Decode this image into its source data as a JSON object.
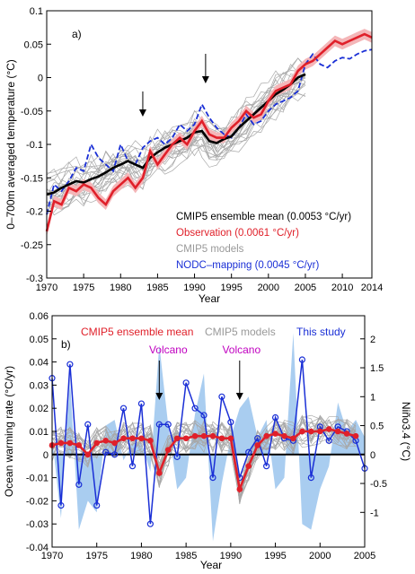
{
  "chart_data": [
    {
      "type": "line",
      "panel_label": "a)",
      "xlabel": "Year",
      "ylabel": "0–700m averaged temperature (°C)",
      "xlim": [
        1970,
        2014
      ],
      "ylim": [
        -0.3,
        0.1
      ],
      "xticks": [
        "1970",
        "1975",
        "1980",
        "1985",
        "1990",
        "1995",
        "2000",
        "2005",
        "2010",
        "2014"
      ],
      "yticks": [
        "-0.3",
        "-0.25",
        "-0.2",
        "-0.15",
        "-0.1",
        "-0.05",
        "0",
        "0.05",
        "0.1"
      ],
      "arrows_at_year": [
        1983,
        1991.5
      ],
      "series": [
        {
          "name": "CMIP5 ensemble mean",
          "label": "CMIP5 ensemble mean  (0.0053 °C/yr)",
          "color": "#000000",
          "x": [
            1970,
            1971,
            1972,
            1973,
            1974,
            1975,
            1976,
            1977,
            1978,
            1979,
            1980,
            1981,
            1982,
            1983,
            1984,
            1985,
            1986,
            1987,
            1988,
            1989,
            1990,
            1991,
            1992,
            1993,
            1994,
            1995,
            1996,
            1997,
            1998,
            1999,
            2000,
            2001,
            2002,
            2003,
            2004,
            2005
          ],
          "y": [
            -0.175,
            -0.172,
            -0.165,
            -0.16,
            -0.155,
            -0.157,
            -0.152,
            -0.148,
            -0.142,
            -0.135,
            -0.13,
            -0.125,
            -0.13,
            -0.135,
            -0.12,
            -0.112,
            -0.105,
            -0.1,
            -0.095,
            -0.09,
            -0.082,
            -0.08,
            -0.095,
            -0.098,
            -0.092,
            -0.088,
            -0.075,
            -0.065,
            -0.055,
            -0.045,
            -0.035,
            -0.025,
            -0.018,
            -0.01,
            0.0,
            0.005
          ]
        },
        {
          "name": "Observation",
          "label": "Observation (0.0061 °C/yr)",
          "color": "#e0202a",
          "x": [
            1970,
            1971,
            1972,
            1973,
            1974,
            1975,
            1976,
            1977,
            1978,
            1979,
            1980,
            1981,
            1982,
            1983,
            1984,
            1985,
            1986,
            1987,
            1988,
            1989,
            1990,
            1991,
            1992,
            1993,
            1994,
            1995,
            1996,
            1997,
            1998,
            1999,
            2000,
            2001,
            2002,
            2003,
            2004,
            2005,
            2006,
            2007,
            2008,
            2009,
            2010,
            2011,
            2012,
            2013,
            2014
          ],
          "y": [
            -0.23,
            -0.185,
            -0.19,
            -0.165,
            -0.17,
            -0.16,
            -0.165,
            -0.18,
            -0.19,
            -0.17,
            -0.16,
            -0.15,
            -0.165,
            -0.15,
            -0.11,
            -0.13,
            -0.115,
            -0.1,
            -0.09,
            -0.1,
            -0.08,
            -0.065,
            -0.085,
            -0.09,
            -0.09,
            -0.075,
            -0.065,
            -0.05,
            -0.06,
            -0.055,
            -0.035,
            -0.02,
            -0.015,
            -0.01,
            0.01,
            0.02,
            0.025,
            0.035,
            0.045,
            0.055,
            0.05,
            0.055,
            0.06,
            0.065,
            0.06
          ]
        },
        {
          "name": "CMIP5 models",
          "label": "CMIP5 models",
          "color": "#999999"
        },
        {
          "name": "NODC-mapping",
          "label": "NODC–mapping (0.0045 °C/yr)",
          "color": "#1a2fd6",
          "x": [
            1970,
            1971,
            1972,
            1973,
            1974,
            1975,
            1976,
            1977,
            1978,
            1979,
            1980,
            1981,
            1982,
            1983,
            1984,
            1985,
            1986,
            1987,
            1988,
            1989,
            1990,
            1991,
            1992,
            1993,
            1994,
            1995,
            1996,
            1997,
            1998,
            1999,
            2000,
            2001,
            2002,
            2003,
            2004,
            2005,
            2006,
            2007,
            2008,
            2009,
            2010,
            2011,
            2012,
            2013,
            2014
          ],
          "y": [
            -0.205,
            -0.16,
            -0.17,
            -0.155,
            -0.135,
            -0.14,
            -0.1,
            -0.12,
            -0.13,
            -0.14,
            -0.1,
            -0.125,
            -0.13,
            -0.105,
            -0.095,
            -0.09,
            -0.1,
            -0.09,
            -0.07,
            -0.08,
            -0.07,
            -0.04,
            -0.06,
            -0.075,
            -0.085,
            -0.09,
            -0.075,
            -0.055,
            -0.07,
            -0.065,
            -0.05,
            -0.04,
            -0.035,
            -0.03,
            -0.02,
            0.02,
            0.035,
            0.02,
            0.015,
            0.025,
            0.03,
            0.028,
            0.035,
            0.04,
            0.042
          ]
        }
      ]
    },
    {
      "type": "line",
      "panel_label": "b)",
      "xlabel": "Year",
      "ylabel": "Ocean warming rate (°C/yr)",
      "ylabel_right": "Niño3.4 (°C)",
      "xlim": [
        1970,
        2005
      ],
      "ylim": [
        -0.04,
        0.06
      ],
      "ylim_right": [
        -1.6,
        2.4
      ],
      "xticks": [
        "1970",
        "1975",
        "1980",
        "1985",
        "1990",
        "1995",
        "2000",
        "2005"
      ],
      "yticks": [
        "-0.04",
        "-0.03",
        "-0.02",
        "-0.01",
        "0",
        "0.01",
        "0.02",
        "0.03",
        "0.04",
        "0.05",
        "0.06"
      ],
      "yticks_right": [
        "-1",
        "-0.5",
        "0",
        "0.5",
        "1",
        "1.5",
        "2"
      ],
      "annotations": [
        {
          "text": "Volcano",
          "year": 1982,
          "color": "#c000c0"
        },
        {
          "text": "Volcano",
          "year": 1991,
          "color": "#c000c0"
        }
      ],
      "legend": [
        {
          "label": "CMIP5 ensemble mean",
          "color": "#e0202a"
        },
        {
          "label": "CMIP5 models",
          "color": "#999999"
        },
        {
          "label": "This study",
          "color": "#1a2fd6"
        }
      ],
      "series": [
        {
          "name": "CMIP5 ensemble mean",
          "color": "#e0202a",
          "x": [
            1970,
            1971,
            1972,
            1973,
            1974,
            1975,
            1976,
            1977,
            1978,
            1979,
            1980,
            1981,
            1982,
            1983,
            1984,
            1985,
            1986,
            1987,
            1988,
            1989,
            1990,
            1991,
            1992,
            1993,
            1994,
            1995,
            1996,
            1997,
            1998,
            1999,
            2000,
            2001,
            2002,
            2003,
            2004
          ],
          "y": [
            0.004,
            0.005,
            0.005,
            0.004,
            0.0,
            0.005,
            0.006,
            0.005,
            0.007,
            0.007,
            0.007,
            0.006,
            -0.008,
            0.002,
            0.007,
            0.007,
            0.008,
            0.008,
            0.008,
            0.007,
            0.007,
            -0.015,
            -0.005,
            0.004,
            0.008,
            0.009,
            0.008,
            0.007,
            0.01,
            0.01,
            0.01,
            0.011,
            0.01,
            0.009,
            0.008
          ]
        },
        {
          "name": "This study",
          "color": "#1a2fd6",
          "x": [
            1970,
            1971,
            1972,
            1973,
            1974,
            1975,
            1976,
            1977,
            1978,
            1979,
            1980,
            1981,
            1982,
            1983,
            1984,
            1985,
            1986,
            1987,
            1988,
            1989,
            1990,
            1991,
            1992,
            1993,
            1994,
            1995,
            1996,
            1997,
            1998,
            1999,
            2000,
            2001,
            2002,
            2003,
            2004,
            2005
          ],
          "y": [
            0.033,
            -0.022,
            0.039,
            -0.013,
            0.013,
            -0.022,
            0.001,
            0.0,
            0.02,
            -0.005,
            0.022,
            -0.03,
            0.013,
            0.013,
            -0.001,
            0.031,
            0.02,
            0.017,
            -0.01,
            0.025,
            0.014,
            -0.01,
            0.001,
            0.007,
            -0.005,
            0.016,
            0.007,
            0.006,
            0.041,
            -0.01,
            0.012,
            0.006,
            0.012,
            0.01,
            0.006,
            -0.006
          ]
        },
        {
          "name": "Niño3.4",
          "color": "#a9cdf0",
          "axis": "right",
          "x": [
            1970,
            1971,
            1972,
            1973,
            1974,
            1975,
            1976,
            1977,
            1978,
            1979,
            1980,
            1981,
            1982,
            1983,
            1984,
            1985,
            1986,
            1987,
            1988,
            1989,
            1990,
            1991,
            1992,
            1993,
            1994,
            1995,
            1996,
            1997,
            1998,
            1999,
            2000,
            2001,
            2002,
            2003,
            2004,
            2005
          ],
          "y": [
            0.3,
            -1.1,
            1.3,
            -1.3,
            -0.8,
            -1.0,
            0.5,
            0.6,
            -0.1,
            0.2,
            0.2,
            -0.3,
            1.9,
            0.5,
            -0.6,
            -0.4,
            0.7,
            1.4,
            -1.5,
            -0.5,
            0.3,
            0.8,
            1.0,
            0.3,
            0.6,
            -0.6,
            -0.4,
            2.1,
            -1.2,
            -1.3,
            -0.6,
            -0.2,
            0.9,
            0.4,
            0.6,
            0.3
          ]
        }
      ]
    }
  ]
}
